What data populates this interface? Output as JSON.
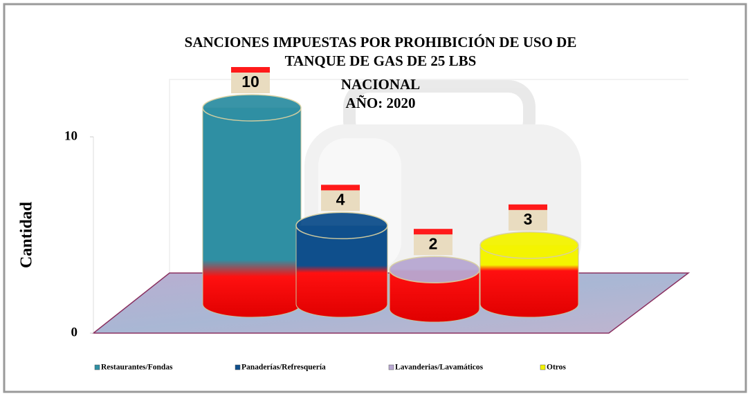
{
  "chart_data": {
    "type": "cylinder",
    "title": [
      "SANCIONES IMPUESTAS POR PROHIBICIÓN DE USO DE",
      "TANQUE DE GAS DE 25 LBS"
    ],
    "subtitle": [
      "NACIONAL",
      "AÑO: 2020"
    ],
    "y_label": "Cantidad",
    "categories": [
      "Restaurantes/Fondas",
      "Panaderías/Refresquería",
      "Lavanderias/Lavamáticos",
      "Otros"
    ],
    "values": [
      10,
      4,
      2,
      3
    ],
    "colors": [
      "#2f8fa3",
      "#0f4f8c",
      "#b8a8d2",
      "#f4f400"
    ],
    "ylim": [
      0,
      10
    ],
    "yticks": [
      0,
      10
    ],
    "legend": "bottom"
  }
}
